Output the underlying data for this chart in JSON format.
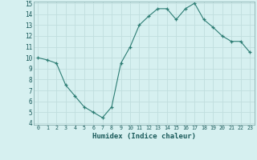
{
  "x": [
    0,
    1,
    2,
    3,
    4,
    5,
    6,
    7,
    8,
    9,
    10,
    11,
    12,
    13,
    14,
    15,
    16,
    17,
    18,
    19,
    20,
    21,
    22,
    23
  ],
  "y": [
    10.0,
    9.8,
    9.5,
    7.5,
    6.5,
    5.5,
    5.0,
    4.5,
    5.5,
    9.5,
    11.0,
    13.0,
    13.8,
    14.5,
    14.5,
    13.5,
    14.5,
    15.0,
    13.5,
    12.8,
    12.0,
    11.5,
    11.5,
    10.5
  ],
  "xlabel": "Humidex (Indice chaleur)",
  "ylim": [
    4,
    15
  ],
  "xlim": [
    -0.5,
    23.5
  ],
  "yticks": [
    4,
    5,
    6,
    7,
    8,
    9,
    10,
    11,
    12,
    13,
    14,
    15
  ],
  "xticks": [
    0,
    1,
    2,
    3,
    4,
    5,
    6,
    7,
    8,
    9,
    10,
    11,
    12,
    13,
    14,
    15,
    16,
    17,
    18,
    19,
    20,
    21,
    22,
    23
  ],
  "line_color": "#2d7d74",
  "marker": "+",
  "bg_color": "#d6f0f0",
  "grid_color": "#c0dede",
  "spine_color": "#8ab0b0"
}
